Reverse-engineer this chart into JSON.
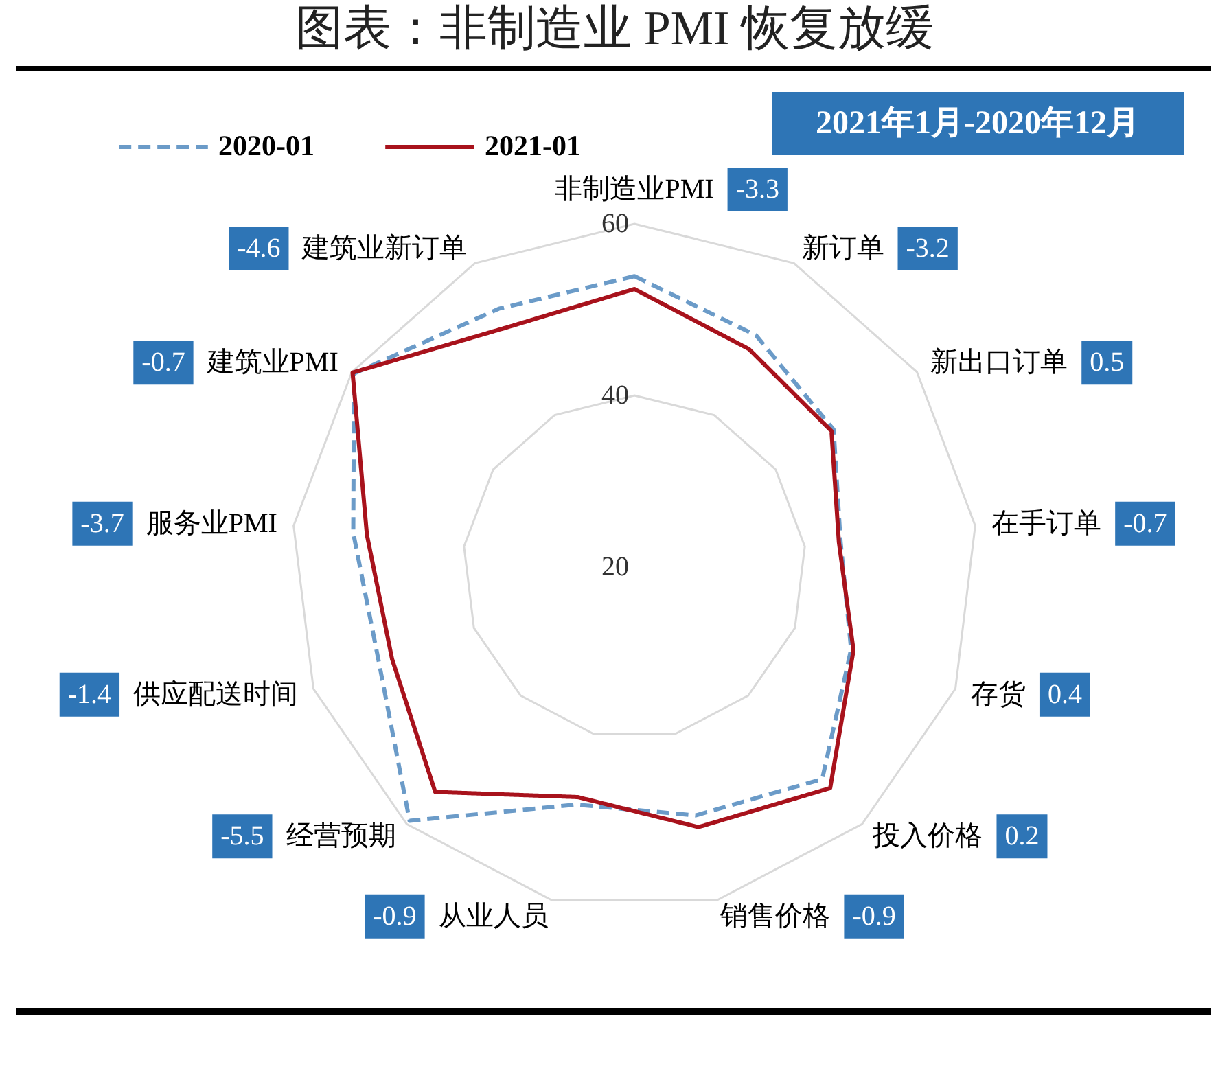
{
  "chart_data": {
    "type": "radar",
    "title": "图表：非制造业 PMI 恢复放缓",
    "categories": [
      "非制造业PMI",
      "新订单",
      "新出口订单",
      "在手订单",
      "存货",
      "投入价格",
      "销售价格",
      "从业人员",
      "经营预期",
      "供应配送时间",
      "服务业PMI",
      "建筑业PMI",
      "建筑业新订单"
    ],
    "series": [
      {
        "name": "2020-01",
        "color": "#6b9bc8",
        "line_style": "dashed",
        "values": [
          53.9,
          50.5,
          48.2,
          44.2,
          47.0,
          53.0,
          49.8,
          48.5,
          59.5,
          51.8,
          53.0,
          59.7,
          54.0
        ]
      },
      {
        "name": "2021-01",
        "color": "#a8121c",
        "line_style": "solid",
        "values": [
          52.4,
          48.7,
          47.9,
          44.0,
          47.3,
          54.4,
          51.2,
          47.6,
          55.0,
          50.2,
          51.4,
          59.9,
          51.6
        ]
      }
    ],
    "ylim": [
      20,
      60
    ],
    "yticks": [
      20,
      40,
      60
    ],
    "grid": true,
    "legend": "top left",
    "annotations": [
      "2021年1月-2020年12月",
      {
        "text": "-3.3",
        "x": "非制造业PMI"
      },
      {
        "text": "-3.2",
        "x": "新订单"
      },
      {
        "text": "0.5",
        "x": "新出口订单"
      },
      {
        "text": "-0.7",
        "x": "在手订单"
      },
      {
        "text": "0.4",
        "x": "存货"
      },
      {
        "text": "0.2",
        "x": "投入价格"
      },
      {
        "text": "-0.9",
        "x": "销售价格"
      },
      {
        "text": "-0.9",
        "x": "从业人员"
      },
      {
        "text": "-5.5",
        "x": "经营预期"
      },
      {
        "text": "-1.4",
        "x": "供应配送时间"
      },
      {
        "text": "-3.7",
        "x": "服务业PMI"
      },
      {
        "text": "-0.7",
        "x": "建筑业PMI"
      },
      {
        "text": "-4.6",
        "x": "建筑业新订单"
      }
    ]
  }
}
